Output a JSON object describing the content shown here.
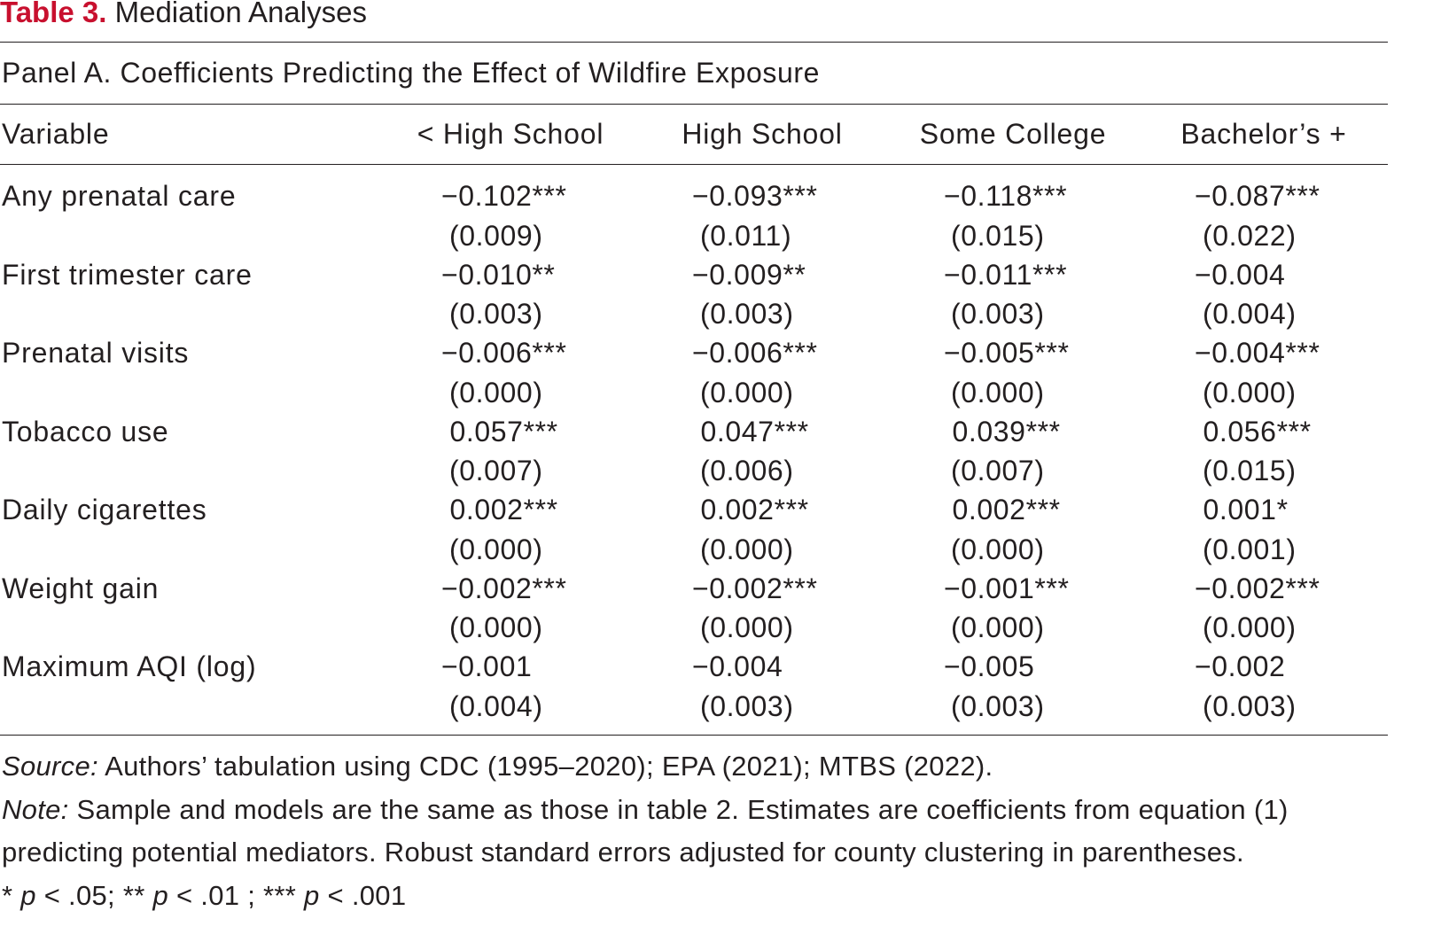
{
  "table": {
    "number": "Table 3.",
    "title": "Mediation Analyses",
    "panel": "Panel A. Coefficients Predicting the Effect of Wildfire Exposure",
    "columns": [
      "Variable",
      "< High School",
      "High School",
      "Some College",
      "Bachelor’s +"
    ],
    "rows": [
      {
        "variable": "Any prenatal care",
        "coefs": [
          "−0.102***",
          "−0.093***",
          "−0.118***",
          "−0.087***"
        ],
        "ses": [
          "(0.009)",
          "(0.011)",
          "(0.015)",
          "(0.022)"
        ]
      },
      {
        "variable": "First trimester care",
        "coefs": [
          "−0.010**",
          "−0.009**",
          "−0.011***",
          "−0.004"
        ],
        "ses": [
          "(0.003)",
          "(0.003)",
          "(0.003)",
          "(0.004)"
        ]
      },
      {
        "variable": "Prenatal visits",
        "coefs": [
          "−0.006***",
          "−0.006***",
          "−0.005***",
          "−0.004***"
        ],
        "ses": [
          "(0.000)",
          "(0.000)",
          "(0.000)",
          "(0.000)"
        ]
      },
      {
        "variable": "Tobacco use",
        "coefs": [
          " 0.057***",
          " 0.047***",
          " 0.039***",
          " 0.056***"
        ],
        "ses": [
          "(0.007)",
          "(0.006)",
          "(0.007)",
          "(0.015)"
        ]
      },
      {
        "variable": "Daily cigarettes",
        "coefs": [
          " 0.002***",
          " 0.002***",
          " 0.002***",
          " 0.001*"
        ],
        "ses": [
          "(0.000)",
          "(0.000)",
          "(0.000)",
          "(0.001)"
        ]
      },
      {
        "variable": "Weight gain",
        "coefs": [
          "−0.002***",
          "−0.002***",
          "−0.001***",
          "−0.002***"
        ],
        "ses": [
          "(0.000)",
          "(0.000)",
          "(0.000)",
          "(0.000)"
        ]
      },
      {
        "variable": "Maximum AQI (log)",
        "coefs": [
          "−0.001",
          "−0.004",
          "−0.005",
          "−0.002"
        ],
        "ses": [
          "(0.004)",
          "(0.003)",
          "(0.003)",
          "(0.003)"
        ]
      }
    ]
  },
  "notes": {
    "source_label": "Source:",
    "source_text": " Authors’ tabulation using CDC (1995–2020); EPA (2021); MTBS (2022).",
    "note_label": "Note:",
    "note_line1": " Sample and models are the same as those in table 2. Estimates are coefficients from equation (1)",
    "note_line2": "predicting potential mediators. Robust standard errors adjusted for county clustering in parentheses.",
    "sig_1a": "* ",
    "sig_1p": "p",
    "sig_1b": " < .05; ** ",
    "sig_2p": "p",
    "sig_2b": " < .01 ; *** ",
    "sig_3p": "p",
    "sig_3b": " < .001"
  },
  "colors": {
    "title_number": "#c8102e",
    "text": "#231f20"
  }
}
